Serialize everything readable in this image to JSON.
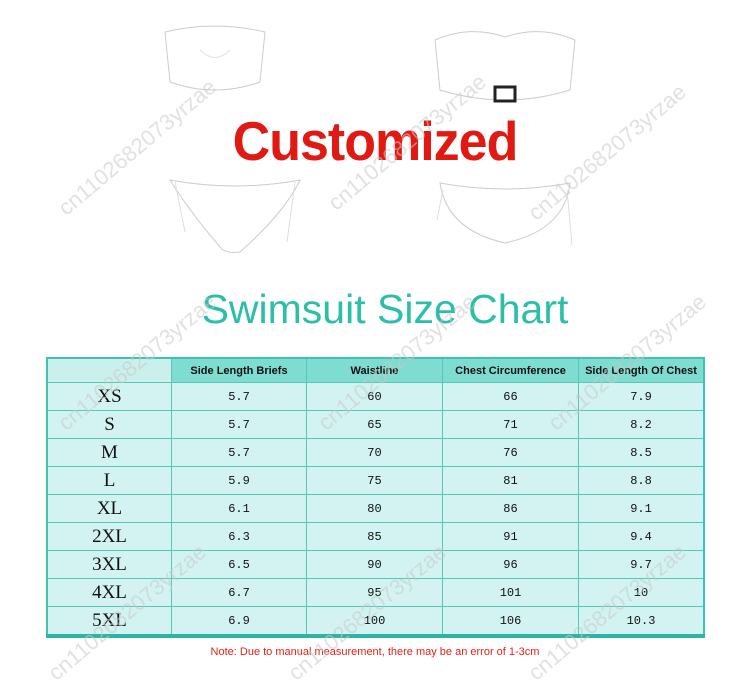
{
  "header": {
    "badge": "Customized",
    "title": "Swimsuit Size Chart"
  },
  "table": {
    "columns": [
      "",
      "Side Length Briefs",
      "Waistline",
      "Chest Circumference",
      "Side Length Of Chest"
    ],
    "rows": [
      [
        "XS",
        "5.7",
        "60",
        "66",
        "7.9"
      ],
      [
        "S",
        "5.7",
        "65",
        "71",
        "8.2"
      ],
      [
        "M",
        "5.7",
        "70",
        "76",
        "8.5"
      ],
      [
        "L",
        "5.9",
        "75",
        "81",
        "8.8"
      ],
      [
        "XL",
        "6.1",
        "80",
        "86",
        "9.1"
      ],
      [
        "2XL",
        "6.3",
        "85",
        "91",
        "9.4"
      ],
      [
        "3XL",
        "6.5",
        "90",
        "96",
        "9.7"
      ],
      [
        "4XL",
        "6.7",
        "95",
        "101",
        "10"
      ],
      [
        "5XL",
        "6.9",
        "100",
        "106",
        "10.3"
      ]
    ]
  },
  "note": "Note: Due to manual measurement, there may be an error of 1-3cm",
  "watermark": "cn1102682073yrzae",
  "colors": {
    "accent": "#2bbfa8",
    "badge": "#e01a12",
    "note": "#e3221b",
    "header_fill": "#7fdcd0",
    "cell_fill": "#d2f3f1"
  }
}
